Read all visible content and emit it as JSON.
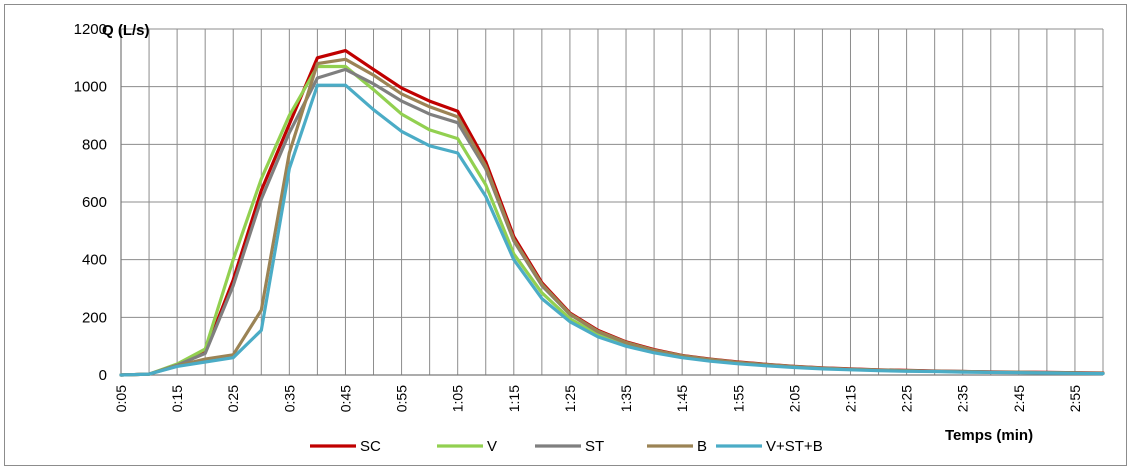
{
  "chart_data": {
    "type": "line",
    "ylabel": "Q (L/s)",
    "xlabel": "Temps (min)",
    "ylim": [
      0,
      1200
    ],
    "yticks": [
      0,
      200,
      400,
      600,
      800,
      1000,
      1200
    ],
    "x_tick_labels": [
      "0:05",
      "0:15",
      "0:25",
      "0:35",
      "0:45",
      "0:55",
      "1:05",
      "1:15",
      "1:25",
      "1:35",
      "1:45",
      "1:55",
      "2:05",
      "2:15",
      "2:25",
      "2:35",
      "2:45",
      "2:55"
    ],
    "x": [
      "0:05",
      "0:10",
      "0:15",
      "0:20",
      "0:25",
      "0:30",
      "0:35",
      "0:40",
      "0:45",
      "0:50",
      "0:55",
      "1:00",
      "1:05",
      "1:10",
      "1:15",
      "1:20",
      "1:25",
      "1:30",
      "1:35",
      "1:40",
      "1:45",
      "1:50",
      "1:55",
      "2:00",
      "2:05",
      "2:10",
      "2:15",
      "2:20",
      "2:25",
      "2:30",
      "2:35",
      "2:40",
      "2:45",
      "2:50",
      "2:55",
      "3:00"
    ],
    "grid": true,
    "legend_position": "bottom",
    "series": [
      {
        "name": "SC",
        "color": "#c00000",
        "values": [
          0,
          3,
          35,
          80,
          330,
          640,
          870,
          1100,
          1125,
          1060,
          995,
          950,
          915,
          740,
          480,
          320,
          215,
          155,
          115,
          88,
          68,
          55,
          45,
          37,
          30,
          25,
          21,
          18,
          16,
          14,
          12,
          11,
          10,
          9,
          8,
          7
        ]
      },
      {
        "name": "V",
        "color": "#92d050",
        "values": [
          0,
          3,
          38,
          90,
          400,
          680,
          900,
          1070,
          1070,
          990,
          905,
          850,
          820,
          660,
          420,
          285,
          195,
          140,
          105,
          80,
          62,
          50,
          41,
          34,
          28,
          23,
          19,
          17,
          15,
          13,
          11,
          10,
          9,
          8,
          7,
          6
        ]
      },
      {
        "name": "ST",
        "color": "#7f7f7f",
        "values": [
          0,
          3,
          34,
          75,
          310,
          610,
          840,
          1030,
          1060,
          1010,
          950,
          905,
          875,
          715,
          465,
          310,
          210,
          150,
          112,
          85,
          66,
          53,
          43,
          36,
          29,
          24,
          20,
          17,
          15,
          13,
          12,
          10,
          9,
          8,
          7,
          6
        ]
      },
      {
        "name": "B",
        "color": "#9b8355",
        "values": [
          0,
          3,
          32,
          55,
          70,
          225,
          770,
          1080,
          1095,
          1040,
          975,
          930,
          895,
          725,
          470,
          315,
          212,
          152,
          113,
          86,
          67,
          54,
          44,
          36,
          29,
          24,
          20,
          17,
          15,
          13,
          12,
          10,
          9,
          8,
          7,
          6
        ]
      },
      {
        "name": "V+ST+B",
        "color": "#4bacc6",
        "values": [
          0,
          3,
          30,
          45,
          60,
          155,
          715,
          1005,
          1005,
          920,
          845,
          795,
          770,
          620,
          400,
          265,
          185,
          132,
          100,
          77,
          60,
          48,
          39,
          32,
          26,
          21,
          18,
          15,
          13,
          12,
          10,
          9,
          8,
          7,
          6,
          5
        ]
      }
    ]
  }
}
